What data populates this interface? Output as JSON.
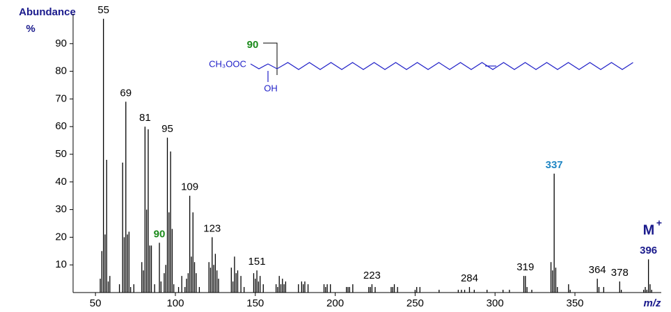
{
  "chart_data": {
    "type": "bar",
    "y_axis_title": "Abundance",
    "y_axis_unit": "%",
    "x_axis_title": "m/z",
    "xlim": [
      36,
      404
    ],
    "ylim": [
      0,
      100
    ],
    "xticks": [
      50,
      100,
      150,
      200,
      250,
      300,
      350
    ],
    "yticks": [
      10,
      20,
      30,
      40,
      50,
      60,
      70,
      80,
      90
    ],
    "color": "#000000",
    "x": [
      53,
      54,
      55,
      56,
      57,
      58,
      59,
      65,
      67,
      68,
      69,
      70,
      71,
      72,
      74,
      79,
      80,
      81,
      82,
      83,
      84,
      85,
      87,
      90,
      91,
      93,
      94,
      95,
      96,
      97,
      98,
      99,
      102,
      104,
      106,
      107,
      108,
      109,
      110,
      111,
      112,
      113,
      115,
      121,
      122,
      123,
      124,
      125,
      126,
      127,
      135,
      136,
      137,
      138,
      139,
      141,
      143,
      149,
      150,
      151,
      152,
      153,
      155,
      163,
      164,
      165,
      166,
      167,
      168,
      169,
      177,
      179,
      180,
      181,
      183,
      193,
      194,
      195,
      197,
      207,
      208,
      209,
      211,
      221,
      222,
      223,
      225,
      235,
      236,
      237,
      239,
      250,
      251,
      253,
      265,
      277,
      279,
      281,
      284,
      287,
      295,
      305,
      309,
      318,
      319,
      320,
      323,
      335,
      336,
      337,
      338,
      339,
      346,
      347,
      364,
      365,
      368,
      378,
      379,
      393,
      394,
      395,
      396,
      397,
      398
    ],
    "values": [
      5,
      15,
      99,
      21,
      48,
      4,
      6,
      3,
      47,
      20,
      69,
      21,
      22,
      2,
      3,
      11,
      8,
      60,
      30,
      59,
      17,
      17,
      3,
      18,
      4,
      7,
      10,
      56,
      29,
      51,
      23,
      3,
      2,
      6,
      2,
      5,
      7,
      35,
      13,
      29,
      11,
      7,
      2,
      11,
      9,
      20,
      10,
      14,
      8,
      5,
      9,
      4,
      13,
      7,
      8,
      6,
      2,
      7,
      5,
      8,
      4,
      6,
      3,
      3,
      2,
      6,
      3,
      5,
      3,
      4,
      3,
      4,
      3,
      4,
      3,
      3,
      2,
      3,
      3,
      2,
      2,
      2,
      3,
      2,
      2,
      3,
      2,
      2,
      2,
      3,
      2,
      1,
      2,
      2,
      1,
      1,
      1,
      1,
      2,
      1,
      1,
      1,
      1,
      6,
      6,
      2,
      1,
      11,
      8,
      43,
      9,
      2,
      3,
      1,
      5,
      2,
      2,
      4,
      1,
      1,
      2,
      1,
      12,
      3,
      1
    ],
    "peak_labels": [
      {
        "mz": 55,
        "color": "#000000"
      },
      {
        "mz": 69,
        "color": "#000000"
      },
      {
        "mz": 81,
        "color": "#000000"
      },
      {
        "mz": 90,
        "color": "#1a8a1a"
      },
      {
        "mz": 95,
        "color": "#000000"
      },
      {
        "mz": 109,
        "color": "#000000"
      },
      {
        "mz": 123,
        "color": "#000000"
      },
      {
        "mz": 151,
        "color": "#000000"
      },
      {
        "mz": 223,
        "color": "#000000"
      },
      {
        "mz": 284,
        "color": "#000000"
      },
      {
        "mz": 319,
        "color": "#000000"
      },
      {
        "mz": 337,
        "color": "#1f86c4"
      },
      {
        "mz": 364,
        "color": "#000000"
      },
      {
        "mz": 378,
        "color": "#000000"
      },
      {
        "mz": 396,
        "color": "#1a1a8c"
      }
    ],
    "molecular_ion": {
      "label": "M",
      "charge": "+"
    },
    "structure": {
      "ester": "CH₃OOC",
      "hydroxy": "OH",
      "cleavage": "90"
    }
  }
}
